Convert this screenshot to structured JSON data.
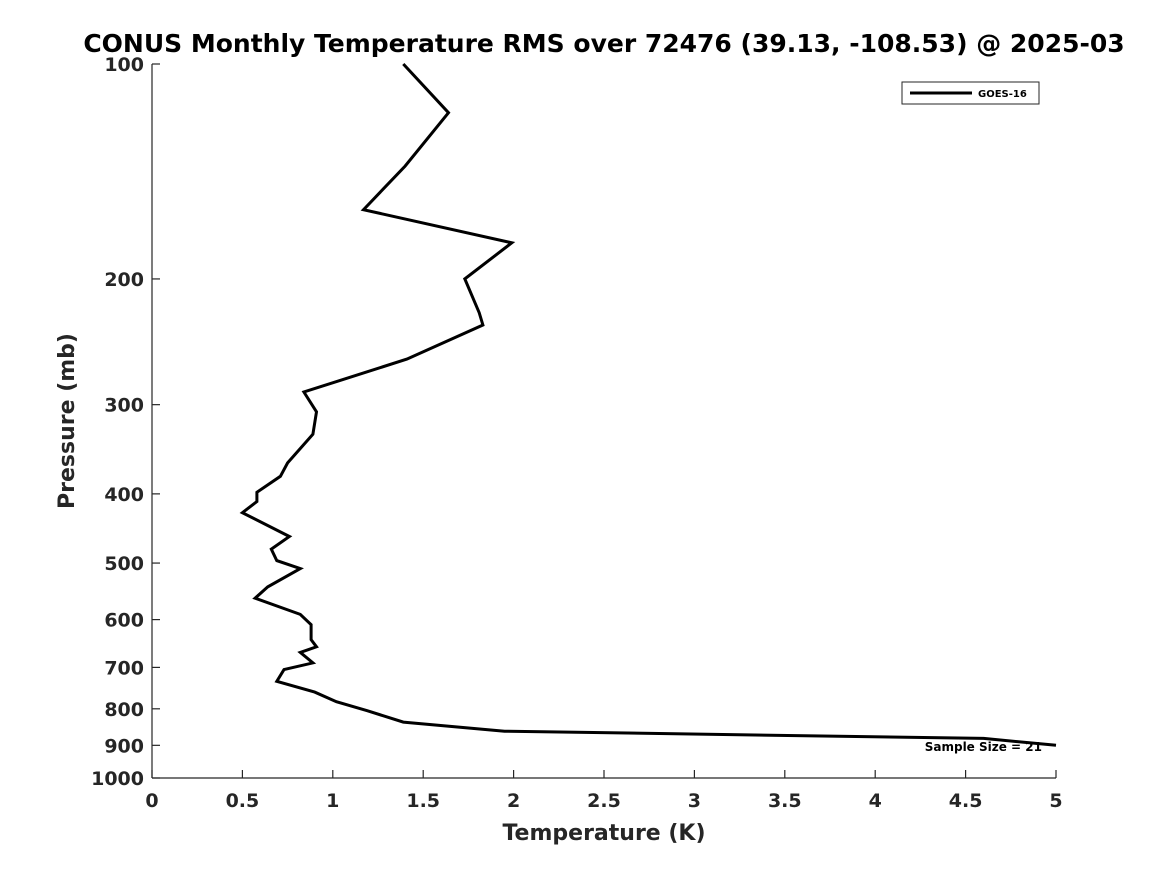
{
  "chart_data": {
    "type": "line",
    "title": "CONUS Monthly Temperature RMS over 72476 (39.13, -108.53) @ 2025-03",
    "xlabel": "Temperature (K)",
    "ylabel": "Pressure (mb)",
    "xlim": [
      0,
      5
    ],
    "ylim": [
      1000,
      100
    ],
    "y_scale": "log",
    "y_reversed": true,
    "x_ticks": [
      "0",
      "0.5",
      "1",
      "1.5",
      "2",
      "2.5",
      "3",
      "3.5",
      "4",
      "4.5",
      "5"
    ],
    "y_ticks": [
      "100",
      "200",
      "300",
      "400",
      "500",
      "600",
      "700",
      "800",
      "900",
      "1000"
    ],
    "grid": false,
    "legend_position": "top-right",
    "series": [
      {
        "name": "GOES-16",
        "color": "#000000",
        "x": [
          1.39,
          1.64,
          1.4,
          1.17,
          1.99,
          1.73,
          1.81,
          1.83,
          1.41,
          0.84,
          0.91,
          0.89,
          0.75,
          0.71,
          0.58,
          0.58,
          0.5,
          0.76,
          0.66,
          0.69,
          0.82,
          0.64,
          0.57,
          0.82,
          0.88,
          0.88,
          0.91,
          0.82,
          0.89,
          0.73,
          0.69,
          0.9,
          1.02,
          1.19,
          1.39,
          1.95,
          4.6,
          5.0
        ],
        "y": [
          100,
          117,
          139,
          160,
          178,
          200,
          223,
          232,
          259,
          288,
          307,
          330,
          362,
          378,
          398,
          410,
          425,
          459,
          478,
          496,
          509,
          540,
          560,
          590,
          610,
          640,
          655,
          667,
          690,
          705,
          732,
          758,
          782,
          805,
          835,
          860,
          880,
          900
        ]
      }
    ],
    "annotations": [
      "Sample Size = 21"
    ]
  }
}
